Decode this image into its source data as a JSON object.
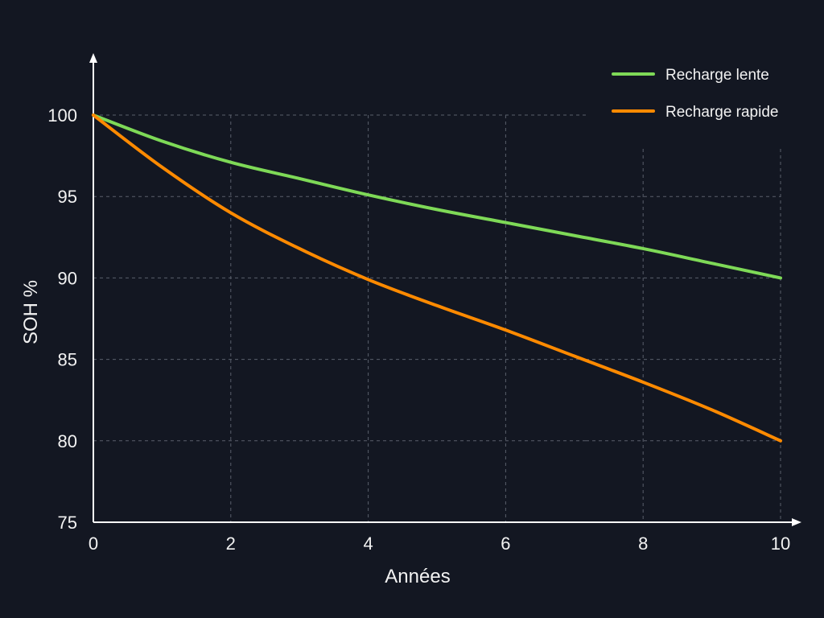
{
  "chart_data": {
    "type": "line",
    "title": "",
    "xlabel": "Années",
    "ylabel": "SOH %",
    "xlim": [
      0,
      10
    ],
    "ylim": [
      75,
      100
    ],
    "x_ticks": [
      0,
      2,
      4,
      6,
      8,
      10
    ],
    "y_ticks": [
      75,
      80,
      85,
      90,
      95,
      100
    ],
    "grid": true,
    "legend_position": "top-right",
    "x": [
      0,
      1,
      2,
      3,
      4,
      5,
      6,
      7,
      8,
      9,
      10
    ],
    "series": [
      {
        "name": "Recharge lente",
        "color": "#7ed957",
        "values": [
          100,
          98.4,
          97.1,
          96.1,
          95.1,
          94.2,
          93.4,
          92.6,
          91.8,
          90.9,
          90.0
        ]
      },
      {
        "name": "Recharge rapide",
        "color": "#ff8a00",
        "values": [
          100,
          96.8,
          94.0,
          91.8,
          89.9,
          88.3,
          86.8,
          85.2,
          83.6,
          81.9,
          80.0
        ]
      }
    ]
  }
}
